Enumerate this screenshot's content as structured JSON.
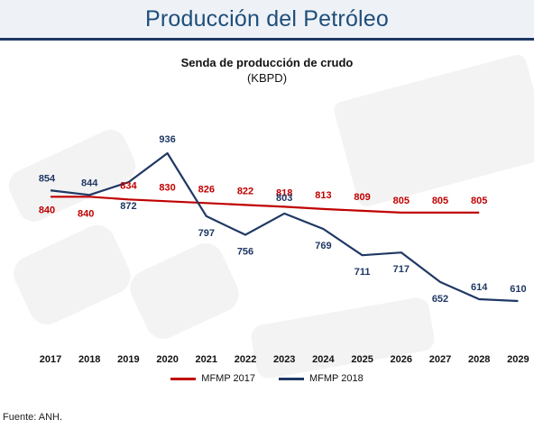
{
  "header": {
    "title": "Producción del Petróleo"
  },
  "footer": {
    "source": "Fuente: ANH."
  },
  "colors": {
    "mfmp2017": "#c00000",
    "mfmp2018": "#1f3864"
  },
  "chart_data": {
    "type": "line",
    "title": "Senda de producción de crudo",
    "subtitle": "(KBPD)",
    "xlabel": "",
    "ylabel": "",
    "categories": [
      "2017",
      "2018",
      "2019",
      "2020",
      "2021",
      "2022",
      "2023",
      "2024",
      "2025",
      "2026",
      "2027",
      "2028",
      "2029"
    ],
    "series": [
      {
        "name": "MFMP 2017",
        "values": [
          840,
          840,
          834,
          830,
          826,
          822,
          818,
          813,
          809,
          805,
          805,
          805,
          null
        ]
      },
      {
        "name": "MFMP 2018",
        "values": [
          854,
          844,
          872,
          936,
          797,
          756,
          803,
          769,
          711,
          717,
          652,
          614,
          610
        ]
      }
    ],
    "grid": false,
    "legend": "bottom"
  }
}
